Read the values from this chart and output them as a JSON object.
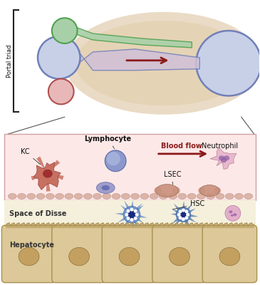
{
  "bg_color": "#ffffff",
  "portal_triad_label": "Portal triad",
  "sinusoid_bg": "#fde8e8",
  "disse_bg": "#f5f0dc",
  "hepatocyte_bg": "#e8d8b5",
  "blood_flow_label": "Blood flow",
  "labels": {
    "KC": "KC",
    "Lymphocyte": "Lymphocyte",
    "LSEC": "LSEC",
    "Neutrophil": "Neutrophil",
    "Space_of_Disse": "Space of Disse",
    "HSC": "HSC",
    "Hepatocyte": "Hepatocyte"
  },
  "colors": {
    "kc_body": "#c87060",
    "kc_nucleus": "#a03030",
    "lymphocyte_body": "#8090c8",
    "lymphocyte_inner": "#b8c8e8",
    "neutrophil_body": "#e8b8cc",
    "neutrophil_nucleus": "#9060a8",
    "hsc_body": "#6090c8",
    "hsc_nucleus": "#1a2a80",
    "arrow_color": "#8b1a1a",
    "portal_blue": "#7080b8",
    "portal_blue_fill": "#c8d0e8",
    "portal_green": "#50a050",
    "portal_green_fill": "#a8d0a8",
    "portal_red": "#b05050",
    "portal_red_fill": "#e8b8b8",
    "portal_tube_fill": "#d0c0d8",
    "portal_tissue": "#e8d8c0",
    "sinusoid_border": "#d0a0a0",
    "lsec_bump": "#d4a898",
    "hepatocyte_fill": "#dcc898",
    "hepatocyte_nucleus": "#c4a060",
    "hepatocyte_border": "#a89050",
    "wavy_color": "#b89858",
    "line_color": "#333333"
  }
}
